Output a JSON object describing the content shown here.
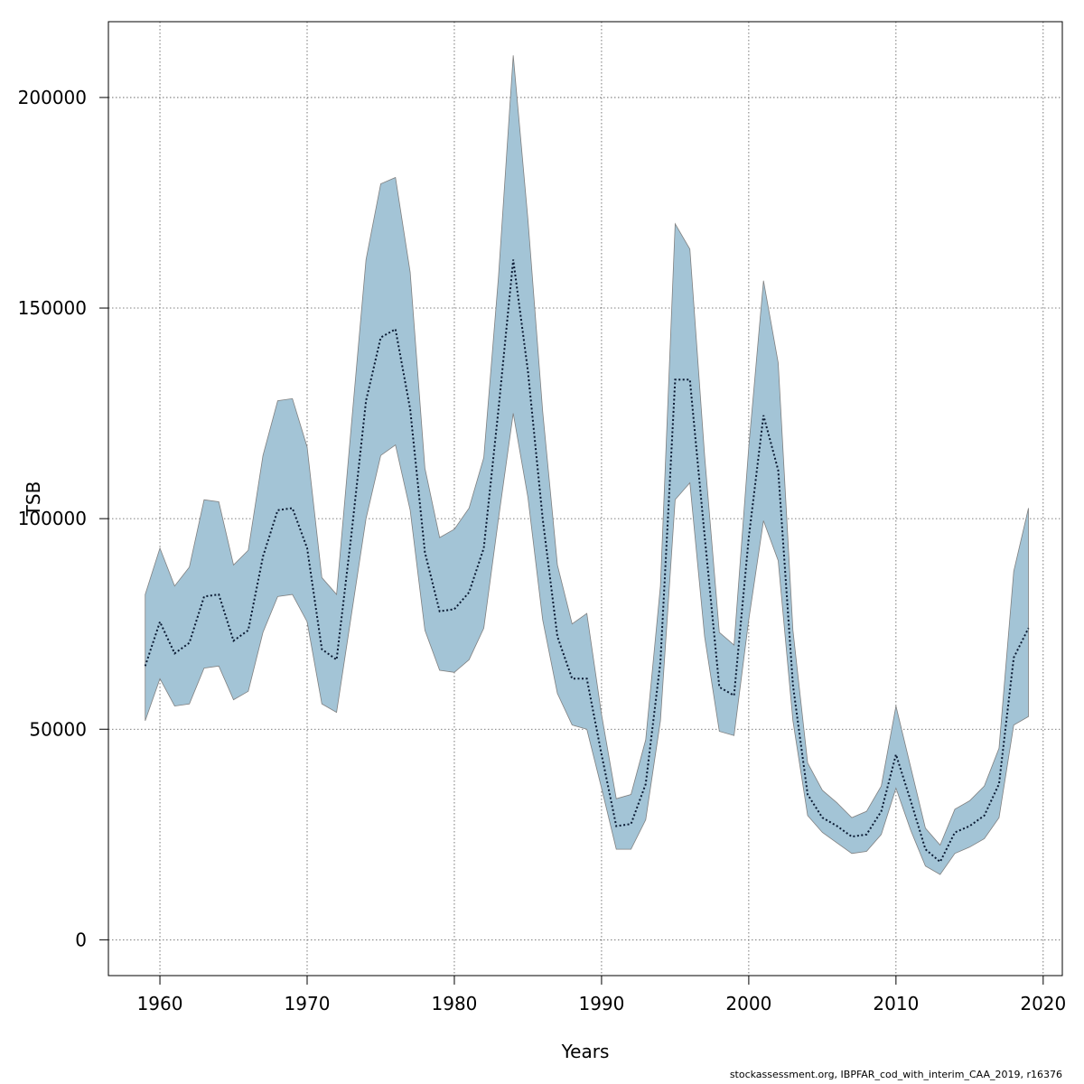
{
  "chart_data": {
    "type": "area",
    "xlabel": "Years",
    "ylabel": "TSB",
    "xlim": [
      1956.5,
      2021.3
    ],
    "ylim": [
      -8500,
      218000
    ],
    "x_ticks": [
      1960,
      1970,
      1980,
      1990,
      2000,
      2010,
      2020
    ],
    "y_ticks": [
      0,
      50000,
      100000,
      150000,
      200000
    ],
    "grid": true,
    "band_color": "#a3c4d6",
    "band_edge_color": "#808080",
    "line_color": "#0a1a33",
    "x": [
      1959,
      1960,
      1961,
      1962,
      1963,
      1964,
      1965,
      1966,
      1967,
      1968,
      1969,
      1970,
      1971,
      1972,
      1973,
      1974,
      1975,
      1976,
      1977,
      1978,
      1979,
      1980,
      1981,
      1982,
      1983,
      1984,
      1985,
      1986,
      1987,
      1988,
      1989,
      1990,
      1991,
      1992,
      1993,
      1994,
      1995,
      1996,
      1997,
      1998,
      1999,
      2000,
      2001,
      2002,
      2003,
      2004,
      2005,
      2006,
      2007,
      2008,
      2009,
      2010,
      2011,
      2012,
      2013,
      2014,
      2015,
      2016,
      2017,
      2018,
      2019
    ],
    "series": [
      {
        "name": "TSB",
        "values": [
          65000,
          75500,
          68000,
          70500,
          81500,
          82000,
          71000,
          73500,
          91000,
          102000,
          102500,
          93000,
          69000,
          66500,
          96000,
          128000,
          143000,
          145000,
          126000,
          92000,
          78000,
          78500,
          82500,
          93000,
          126000,
          161500,
          135000,
          100000,
          72000,
          62000,
          62000,
          44000,
          27000,
          27500,
          37000,
          66000,
          133000,
          133000,
          96000,
          60000,
          58000,
          95500,
          124500,
          111500,
          60500,
          34500,
          29000,
          27000,
          24500,
          25000,
          30500,
          44000,
          33000,
          21500,
          18500,
          25500,
          27000,
          29500,
          37000,
          67000,
          74000
        ]
      },
      {
        "name": "lower",
        "values": [
          52000,
          62000,
          55500,
          56000,
          64500,
          65000,
          57000,
          59000,
          73000,
          81500,
          82000,
          75500,
          56000,
          54000,
          77000,
          100000,
          115000,
          117500,
          102000,
          73500,
          64000,
          63500,
          66500,
          74000,
          100000,
          125000,
          105000,
          76000,
          58500,
          51000,
          50000,
          36000,
          21500,
          21500,
          28500,
          52000,
          104500,
          108500,
          72000,
          49500,
          48500,
          76000,
          99500,
          90000,
          52000,
          29500,
          25500,
          23000,
          20500,
          21000,
          25000,
          36000,
          26000,
          17500,
          15500,
          20500,
          22000,
          24000,
          29000,
          51000,
          53000
        ]
      },
      {
        "name": "upper",
        "values": [
          82000,
          93000,
          84000,
          88500,
          104500,
          104000,
          89000,
          92500,
          115000,
          128000,
          128500,
          117000,
          86000,
          82000,
          122000,
          161500,
          179500,
          181000,
          158500,
          112000,
          95500,
          97500,
          102500,
          114500,
          157500,
          210000,
          171000,
          125500,
          89000,
          75000,
          77500,
          53500,
          33500,
          34500,
          47500,
          84000,
          170000,
          164000,
          115000,
          73000,
          70000,
          117000,
          156500,
          137000,
          73500,
          42000,
          35500,
          32500,
          29000,
          30500,
          36500,
          55500,
          41000,
          26500,
          22500,
          31000,
          33000,
          36500,
          45500,
          87500,
          102500
        ]
      }
    ]
  },
  "footer": {
    "credit": "stockassessment.org, IBPFAR_cod_with_interim_CAA_2019, r16376"
  }
}
